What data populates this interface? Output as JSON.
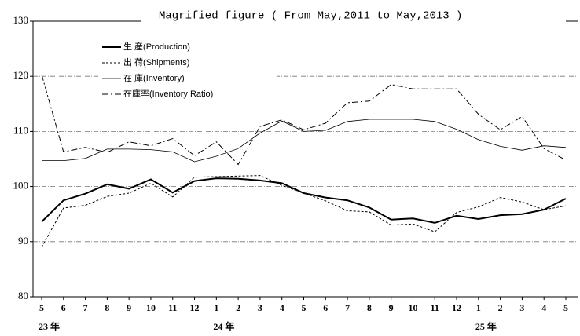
{
  "chart_data": {
    "type": "line",
    "title": "Magrified figure ( From May,2011 to May,2013 )",
    "categories": [
      "5",
      "6",
      "7",
      "8",
      "9",
      "10",
      "11",
      "12",
      "1",
      "2",
      "3",
      "4",
      "5",
      "6",
      "7",
      "8",
      "9",
      "10",
      "11",
      "12",
      "1",
      "2",
      "3",
      "4",
      "5"
    ],
    "category_groups": [
      "23 年",
      null,
      null,
      null,
      null,
      null,
      null,
      null,
      "24 年",
      null,
      null,
      null,
      null,
      null,
      null,
      null,
      null,
      null,
      null,
      null,
      "25 年",
      null,
      null,
      null,
      null
    ],
    "series": [
      {
        "name": "生 産(Production)",
        "color": "#000000",
        "width": 2,
        "dash": "none",
        "values": [
          93.6,
          97.5,
          98.7,
          100.4,
          99.6,
          101.3,
          98.9,
          101.0,
          101.5,
          101.4,
          101.1,
          100.6,
          98.8,
          98.0,
          97.5,
          96.2,
          94.0,
          94.2,
          93.4,
          94.7,
          94.1,
          94.8,
          95.0,
          95.8,
          97.8
        ]
      },
      {
        "name": "出 荷(Shipments)",
        "color": "#000000",
        "width": 1,
        "dash": "3,2",
        "values": [
          89.0,
          96.1,
          96.6,
          98.2,
          98.8,
          100.6,
          98.1,
          101.7,
          101.8,
          101.9,
          102.0,
          100.2,
          98.8,
          97.4,
          95.6,
          95.4,
          93.0,
          93.2,
          91.8,
          95.3,
          96.3,
          98.0,
          97.2,
          95.8,
          96.5
        ]
      },
      {
        "name": "在 庫(Inventory)",
        "color": "#000000",
        "width": 0.8,
        "dash": "none",
        "values": [
          104.7,
          104.7,
          105.1,
          106.8,
          106.8,
          106.7,
          106.3,
          104.5,
          105.5,
          106.9,
          109.7,
          111.9,
          110.0,
          110.2,
          111.8,
          112.2,
          112.2,
          112.2,
          111.8,
          110.4,
          108.5,
          107.3,
          106.6,
          107.4,
          107.1
        ]
      },
      {
        "name": "在庫率(Inventory Ratio)",
        "color": "#000000",
        "width": 1,
        "dash": "8,3,2,3",
        "values": [
          120.3,
          106.3,
          107.1,
          106.2,
          108.1,
          107.4,
          108.7,
          105.6,
          108.1,
          104.0,
          110.9,
          112.1,
          110.3,
          111.5,
          115.2,
          115.5,
          118.5,
          117.7,
          117.7,
          117.7,
          113.1,
          110.3,
          112.7,
          106.9,
          104.8
        ]
      }
    ],
    "ylim": [
      80,
      130
    ],
    "yticks": [
      80,
      90,
      100,
      110,
      120,
      130
    ],
    "grid": true,
    "legend": "top-left"
  }
}
